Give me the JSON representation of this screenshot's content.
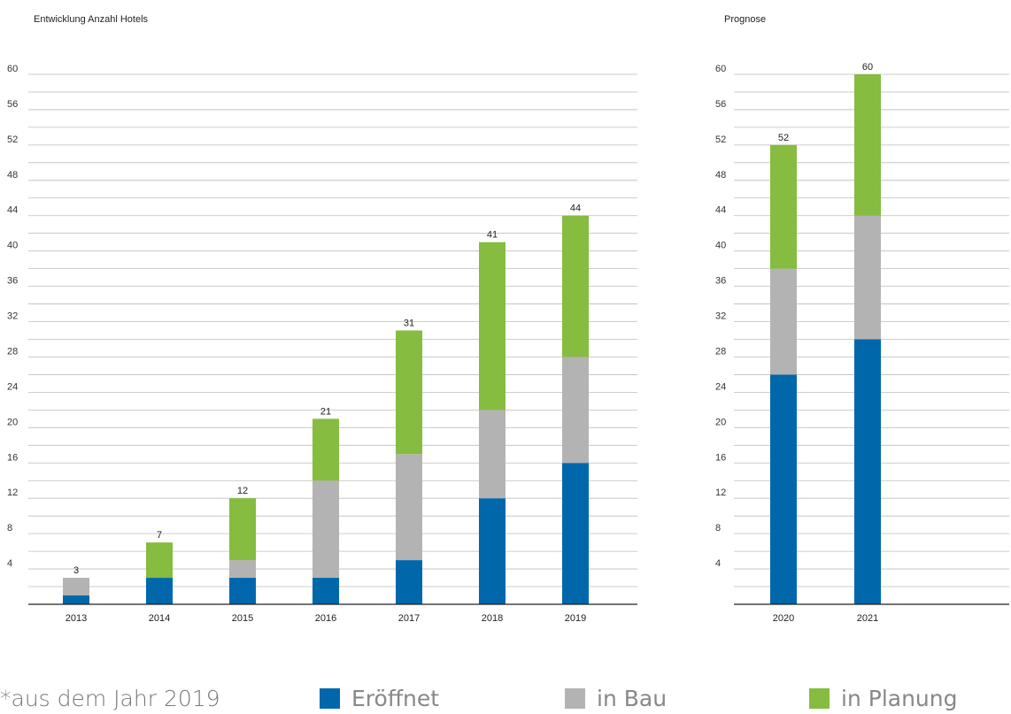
{
  "chart_data": [
    {
      "type": "bar",
      "stacked": true,
      "title": "Entwicklung Anzahl Hotels",
      "categories": [
        "2013",
        "2014",
        "2015",
        "2016",
        "2017",
        "2018",
        "2019"
      ],
      "series": [
        {
          "name": "Eröffnet",
          "color": "#0067ab",
          "values": [
            1,
            3,
            3,
            3,
            5,
            12,
            16
          ]
        },
        {
          "name": "in Bau",
          "color": "#b3b3b3",
          "values": [
            2,
            0,
            2,
            11,
            12,
            10,
            12
          ]
        },
        {
          "name": "in Planung",
          "color": "#86bc3f",
          "values": [
            0,
            4,
            7,
            7,
            14,
            19,
            16
          ]
        }
      ],
      "totals": [
        3,
        7,
        12,
        21,
        31,
        41,
        44
      ],
      "ylim": [
        0,
        60
      ],
      "yticks": [
        4,
        8,
        12,
        16,
        20,
        24,
        28,
        32,
        36,
        40,
        44,
        48,
        52,
        56,
        60
      ],
      "grid": true
    },
    {
      "type": "bar",
      "stacked": true,
      "title": "Prognose",
      "categories": [
        "2020",
        "2021"
      ],
      "series": [
        {
          "name": "Eröffnet",
          "color": "#0067ab",
          "values": [
            26,
            30
          ]
        },
        {
          "name": "in Bau",
          "color": "#b3b3b3",
          "values": [
            12,
            14
          ]
        },
        {
          "name": "in Planung",
          "color": "#86bc3f",
          "values": [
            14,
            16
          ]
        }
      ],
      "totals": [
        52,
        60
      ],
      "ylim": [
        0,
        60
      ],
      "yticks": [
        4,
        8,
        12,
        16,
        20,
        24,
        28,
        32,
        36,
        40,
        44,
        48,
        52,
        56,
        60
      ],
      "grid": true
    }
  ],
  "footnote": "*aus dem Jahr 2019",
  "legend": [
    {
      "label": "Eröffnet",
      "color": "#0067ab"
    },
    {
      "label": "in Bau",
      "color": "#b3b3b3"
    },
    {
      "label": "in Planung",
      "color": "#86bc3f"
    }
  ]
}
